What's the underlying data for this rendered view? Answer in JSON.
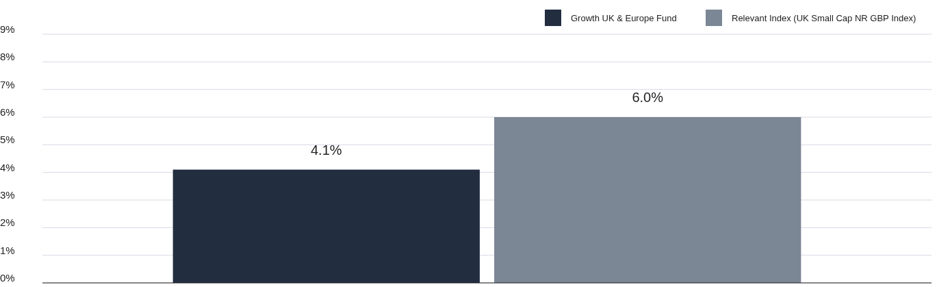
{
  "chart_data": {
    "type": "bar",
    "categories": [
      null
    ],
    "series": [
      {
        "name": "Growth UK & Europe Fund",
        "color": "#222e40",
        "values": [
          4.1
        ],
        "value_labels": [
          "4.1%"
        ]
      },
      {
        "name": "Relevant Index (UK Small Cap NR GBP Index)",
        "color": "#7b8794",
        "values": [
          6.0
        ],
        "value_labels": [
          "6.0%"
        ]
      }
    ],
    "ylim": [
      0,
      9
    ],
    "yticks": [
      {
        "value": 0,
        "label": "0%"
      },
      {
        "value": 1,
        "label": "1%"
      },
      {
        "value": 2,
        "label": "2%"
      },
      {
        "value": 3,
        "label": "3%"
      },
      {
        "value": 4,
        "label": "4%"
      },
      {
        "value": 5,
        "label": "5%"
      },
      {
        "value": 6,
        "label": "6%"
      },
      {
        "value": 7,
        "label": "7%"
      },
      {
        "value": 8,
        "label": "8%"
      },
      {
        "value": 9,
        "label": "9%"
      }
    ],
    "grid": "y",
    "legend": "top right"
  }
}
